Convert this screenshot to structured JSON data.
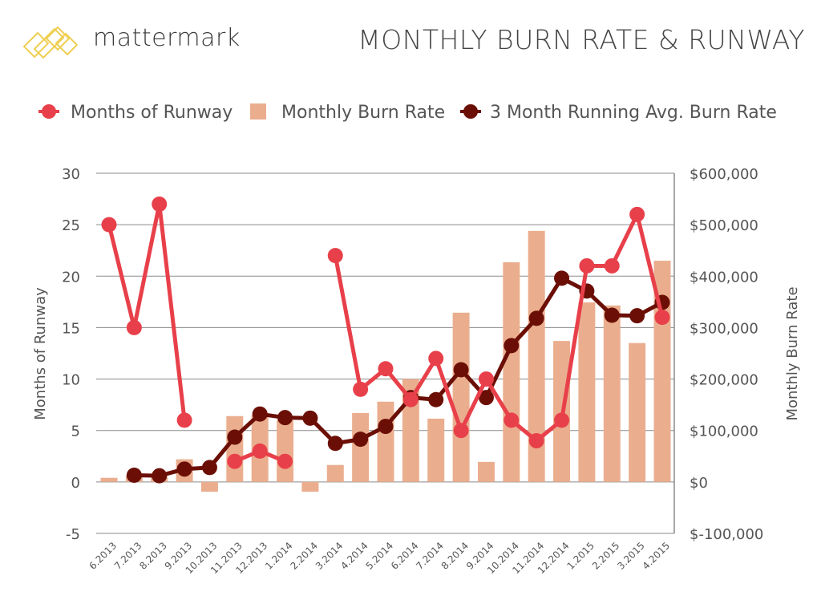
{
  "header": {
    "brand": "mattermark",
    "title": "MONTHLY BURN RATE & RUNWAY"
  },
  "colors": {
    "runway": "#e8404a",
    "burn": "#eaae8f",
    "avg": "#6b0f06",
    "logo": "#efcf52",
    "grid": "#8a8a8a"
  },
  "chart_data": {
    "type": "bar+line",
    "title": "MONTHLY BURN RATE & RUNWAY",
    "legend": {
      "placement": "top",
      "items": [
        "Months of Runway",
        "Monthly Burn Rate",
        "3 Month Running Avg. Burn Rate"
      ]
    },
    "categories": [
      "6.2013",
      "7.2013",
      "8.2013",
      "9.2013",
      "10.2013",
      "11.2013",
      "12.2013",
      "1.2014",
      "2.2014",
      "3.2014",
      "4.2014",
      "5.2014",
      "6.2014",
      "7.2014",
      "8.2014",
      "9.2014",
      "10.2014",
      "11.2014",
      "12.2014",
      "1.2015",
      "2.2015",
      "3.2015",
      "4.2015"
    ],
    "y_left": {
      "label": "Months of Runway",
      "range": [
        -5,
        30
      ],
      "ticks": [
        "-5",
        "0",
        "5",
        "10",
        "15",
        "20",
        "25",
        "30"
      ]
    },
    "y_right": {
      "label": "Monthly Burn Rate",
      "range": [
        -100000,
        600000
      ],
      "ticks": [
        "$-100,000",
        "$0",
        "$100,000",
        "$200,000",
        "$300,000",
        "$400,000",
        "$500,000",
        "$600,000"
      ]
    },
    "grid": true,
    "series": [
      {
        "name": "Months of Runway",
        "type": "line",
        "axis": "left",
        "values": [
          25,
          15,
          27,
          6,
          null,
          2,
          3,
          2,
          null,
          22,
          9,
          11,
          8,
          12,
          5,
          10,
          6,
          4,
          6,
          21,
          21,
          26,
          16
        ]
      },
      {
        "name": "Monthly Burn Rate",
        "type": "bar",
        "axis": "right",
        "values": [
          8000,
          12000,
          10000,
          44000,
          -19000,
          128000,
          130000,
          120000,
          -19000,
          33000,
          134000,
          156000,
          200000,
          123000,
          329000,
          39000,
          427000,
          488000,
          274000,
          349000,
          343000,
          270000,
          430000
        ]
      },
      {
        "name": "3 Month Running Avg. Burn Rate",
        "type": "line",
        "axis": "right",
        "values": [
          null,
          13000,
          12000,
          25000,
          28000,
          87000,
          132000,
          125000,
          124000,
          75000,
          83000,
          108000,
          164000,
          160000,
          218000,
          164000,
          265000,
          318000,
          396000,
          371000,
          324000,
          323000,
          349000
        ]
      }
    ]
  }
}
